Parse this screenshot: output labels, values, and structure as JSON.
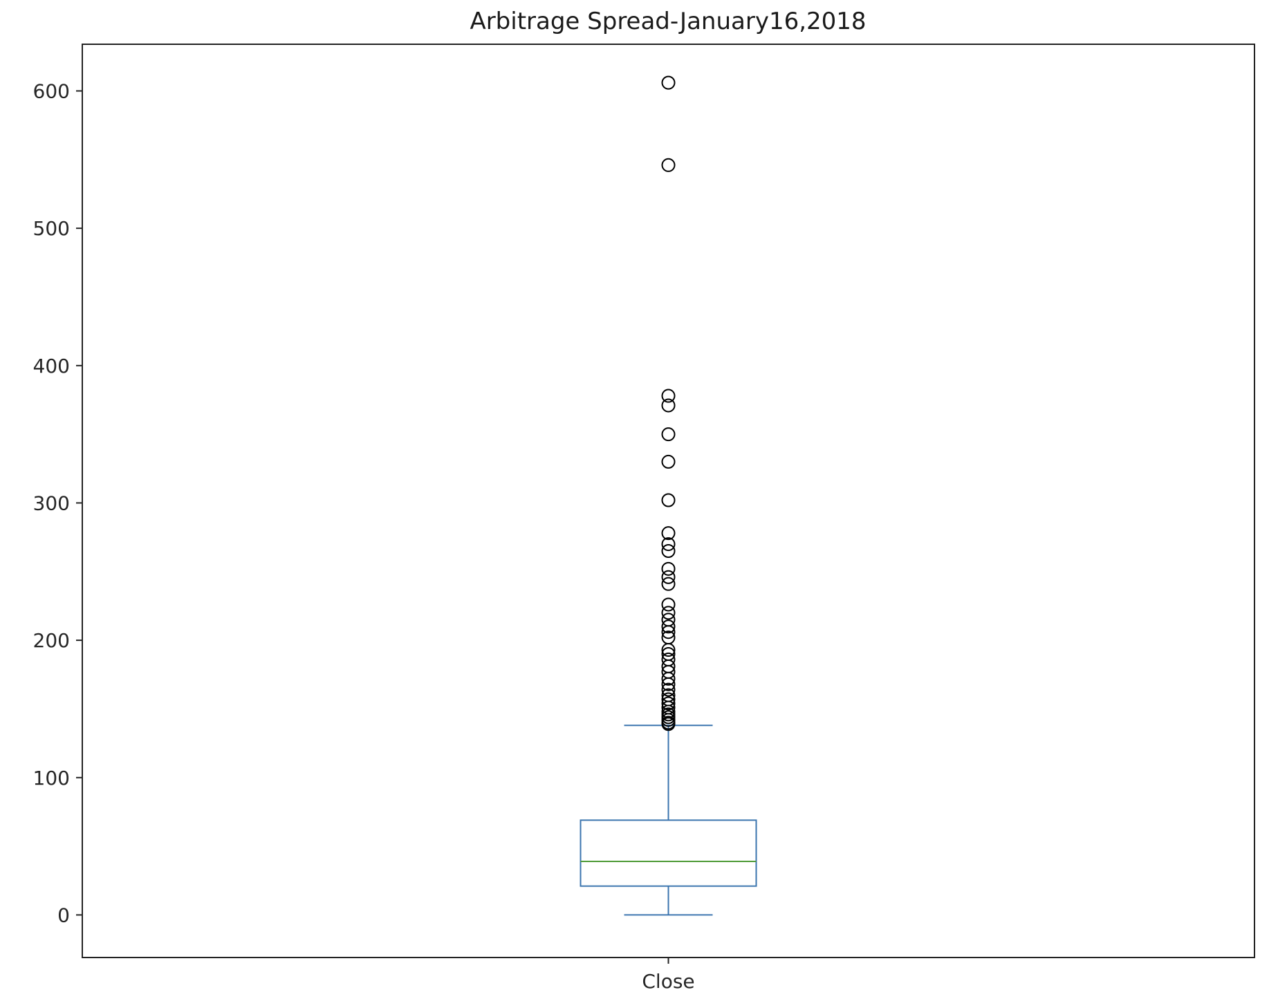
{
  "chart_data": {
    "type": "box",
    "title": "Arbitrage Spread-January16,2018",
    "xlabel": "",
    "ylabel": "",
    "categories": [
      "Close"
    ],
    "ylim": [
      -31,
      634
    ],
    "yticks": [
      0,
      100,
      200,
      300,
      400,
      500,
      600
    ],
    "ytick_labels": [
      "0",
      "100",
      "200",
      "300",
      "400",
      "500",
      "600"
    ],
    "grid": false,
    "boxes": [
      {
        "category": "Close",
        "whisker_low": 0,
        "q1": 21,
        "median": 39,
        "q3": 69,
        "whisker_high": 138,
        "outliers": [
          606,
          546,
          378,
          371,
          350,
          330,
          302,
          278,
          270,
          265,
          252,
          246,
          241,
          226,
          220,
          215,
          210,
          206,
          202,
          193,
          190,
          186,
          181,
          177,
          172,
          168,
          164,
          160,
          157,
          154,
          151,
          148,
          146,
          144,
          142,
          140,
          139
        ]
      }
    ],
    "colors": {
      "box": "#3b75af",
      "median": "#4d9a35",
      "outlier": "#000000",
      "frame": "#222222"
    }
  }
}
